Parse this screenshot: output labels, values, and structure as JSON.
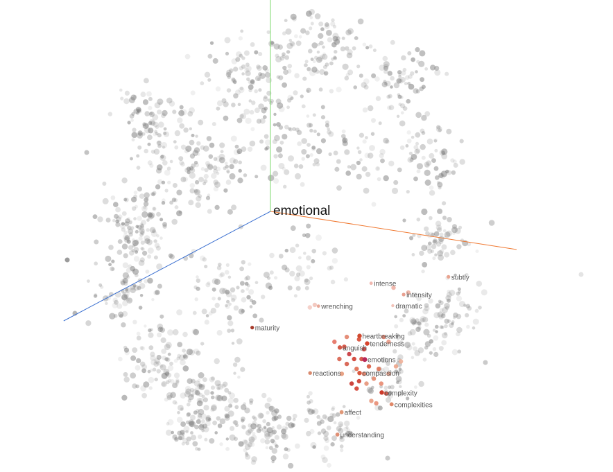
{
  "chart_data": {
    "type": "scatter",
    "title": "",
    "xlabel": "",
    "ylabel": "",
    "dimensions": 3,
    "grid": false,
    "focus": {
      "label": "emotional",
      "x": 0.0,
      "y": 0.0
    },
    "axes_3d": [
      {
        "name": "axis-x-line",
        "color": "#f07830",
        "end": [
          1.0,
          -0.155
        ]
      },
      {
        "name": "axis-y-line",
        "color": "#7cd86c",
        "end": [
          0.0,
          1.0
        ]
      },
      {
        "name": "axis-z-line",
        "color": "#3a6fd0",
        "end": [
          -0.84,
          -0.445
        ]
      }
    ],
    "neighbors": [
      {
        "label": "heartbreaking",
        "x": 0.362,
        "y": -0.506,
        "color": "#d04a30",
        "size": 1.0
      },
      {
        "label": "tenderness",
        "x": 0.393,
        "y": -0.537,
        "color": "#d8442c",
        "size": 1.0
      },
      {
        "label": "anguish",
        "x": 0.282,
        "y": -0.553,
        "color": "#d35a48",
        "size": 1.0
      },
      {
        "label": "emotions",
        "x": 0.383,
        "y": -0.602,
        "color": "#b82858",
        "size": 1.1
      },
      {
        "label": "compassion",
        "x": 0.362,
        "y": -0.657,
        "color": "#d9583e",
        "size": 1.0
      },
      {
        "label": "reactions",
        "x": 0.161,
        "y": -0.657,
        "color": "#d98a6e",
        "size": 0.85
      },
      {
        "label": "complexity",
        "x": 0.452,
        "y": -0.736,
        "color": "#cc3a2a",
        "size": 1.0
      },
      {
        "label": "complexities",
        "x": 0.492,
        "y": -0.784,
        "color": "#e08868",
        "size": 0.9
      },
      {
        "label": "affect",
        "x": 0.289,
        "y": -0.816,
        "color": "#e09878",
        "size": 0.9
      },
      {
        "label": "understanding",
        "x": 0.272,
        "y": -0.907,
        "color": "#e08f74",
        "size": 0.9
      },
      {
        "label": "maturity",
        "x": -0.074,
        "y": -0.472,
        "color": "#a63a2a",
        "size": 0.8
      },
      {
        "label": "wrenching",
        "x": 0.195,
        "y": -0.385,
        "color": "#e8a898",
        "size": 0.75
      },
      {
        "label": "intense",
        "x": 0.409,
        "y": -0.292,
        "color": "#f0b8b0",
        "size": 0.75
      },
      {
        "label": "intensity",
        "x": 0.541,
        "y": -0.338,
        "color": "#e8a090",
        "size": 0.8
      },
      {
        "label": "dramatic",
        "x": 0.497,
        "y": -0.383,
        "color": "#f2c2b8",
        "size": 0.7
      },
      {
        "label": "subtly",
        "x": 0.723,
        "y": -0.266,
        "color": "#e9a490",
        "size": 0.8
      }
    ],
    "cluster_points": [
      {
        "x": 0.3,
        "y": -0.55,
        "color": "#d84a3a"
      },
      {
        "x": 0.32,
        "y": -0.58,
        "color": "#c8343a"
      },
      {
        "x": 0.31,
        "y": -0.62,
        "color": "#d65a48"
      },
      {
        "x": 0.34,
        "y": -0.6,
        "color": "#cf3c30"
      },
      {
        "x": 0.35,
        "y": -0.64,
        "color": "#e06a50"
      },
      {
        "x": 0.37,
        "y": -0.6,
        "color": "#d44a3c"
      },
      {
        "x": 0.38,
        "y": -0.66,
        "color": "#e47a60"
      },
      {
        "x": 0.4,
        "y": -0.63,
        "color": "#d8583c"
      },
      {
        "x": 0.42,
        "y": -0.68,
        "color": "#e48a70"
      },
      {
        "x": 0.44,
        "y": -0.64,
        "color": "#e07458"
      },
      {
        "x": 0.33,
        "y": -0.7,
        "color": "#c83028"
      },
      {
        "x": 0.35,
        "y": -0.72,
        "color": "#d33e30"
      },
      {
        "x": 0.36,
        "y": -0.69,
        "color": "#cc3a2c"
      },
      {
        "x": 0.39,
        "y": -0.7,
        "color": "#e69478"
      },
      {
        "x": 0.45,
        "y": -0.7,
        "color": "#e88a70"
      },
      {
        "x": 0.48,
        "y": -0.66,
        "color": "#ec9e86"
      },
      {
        "x": 0.47,
        "y": -0.74,
        "color": "#d24a38"
      },
      {
        "x": 0.41,
        "y": -0.77,
        "color": "#e89a80"
      },
      {
        "x": 0.43,
        "y": -0.78,
        "color": "#e88c72"
      },
      {
        "x": 0.28,
        "y": -0.6,
        "color": "#d8604c"
      },
      {
        "x": 0.26,
        "y": -0.53,
        "color": "#e47060"
      },
      {
        "x": 0.46,
        "y": -0.51,
        "color": "#e27a64"
      },
      {
        "x": 0.48,
        "y": -0.53,
        "color": "#eb9a86"
      },
      {
        "x": 0.36,
        "y": -0.52,
        "color": "#d84a34"
      },
      {
        "x": 0.38,
        "y": -0.56,
        "color": "#cf3a34"
      },
      {
        "x": 0.31,
        "y": -0.51,
        "color": "#e2826a"
      },
      {
        "x": 0.29,
        "y": -0.66,
        "color": "#e69878"
      },
      {
        "x": 0.51,
        "y": -0.63,
        "color": "#eca488"
      },
      {
        "x": 0.53,
        "y": -0.61,
        "color": "#f0b098"
      },
      {
        "x": 0.56,
        "y": -0.33,
        "color": "#ecae9e"
      },
      {
        "x": 0.5,
        "y": -0.31,
        "color": "#f0b0a4"
      },
      {
        "x": 0.18,
        "y": -0.38,
        "color": "#f2c4ba"
      },
      {
        "x": 0.16,
        "y": -0.39,
        "color": "#f4ccc4"
      }
    ]
  }
}
